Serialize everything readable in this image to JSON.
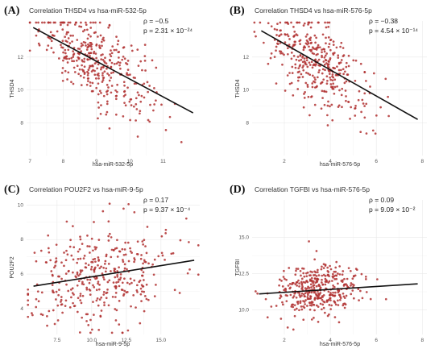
{
  "chart_data": [
    {
      "type": "scatter",
      "letter": "(A)",
      "title": "Correlation THSD4 vs hsa-miR-532-5p",
      "xlabel": "hsa-miR-532-5p",
      "ylabel": "THSD4",
      "rho": "ρ = −0.5",
      "p": "p = 2.31 × 10⁻²⁴",
      "xlim": [
        6.9,
        12.1
      ],
      "ylim": [
        6.0,
        14.2
      ],
      "xticks": [
        7,
        8,
        9,
        10,
        11
      ],
      "yticks": [
        8,
        10,
        12
      ],
      "point_color": "#b03030",
      "point_count": 380,
      "x_center": 9.0,
      "x_sd": 0.85,
      "fit": {
        "x": [
          7.1,
          11.9
        ],
        "y": [
          13.8,
          8.6
        ]
      },
      "y_sd": 1.2
    },
    {
      "type": "scatter",
      "letter": "(B)",
      "title": "Correlation THSD4 vs hsa-miR-576-5p",
      "xlabel": "hsa-miR-576-5p",
      "ylabel": "THSD4",
      "rho": "ρ = −0.38",
      "p": "p = 4.54 × 10⁻¹⁴",
      "xlim": [
        0.6,
        8.2
      ],
      "ylim": [
        6.0,
        14.2
      ],
      "xticks": [
        2,
        4,
        6,
        8
      ],
      "yticks": [
        8,
        10,
        12
      ],
      "point_color": "#b03030",
      "point_count": 380,
      "x_center": 3.5,
      "x_sd": 1.1,
      "fit": {
        "x": [
          1.0,
          7.8
        ],
        "y": [
          13.6,
          8.2
        ]
      },
      "y_sd": 1.3
    },
    {
      "type": "scatter",
      "letter": "(C)",
      "title": "Correlation POU2F2 vs hsa-miR-9-5p",
      "xlabel": "hsa-miR-9-5p",
      "ylabel": "POU2F2",
      "rho": "ρ = 0.17",
      "p": "p = 9.37 × 10⁻⁴",
      "xlim": [
        5.3,
        17.8
      ],
      "ylim": [
        2.5,
        10.3
      ],
      "xticks": [
        7.5,
        10.0,
        12.5,
        15.0
      ],
      "yticks": [
        4,
        6,
        8,
        10
      ],
      "point_color": "#b03030",
      "point_count": 380,
      "x_center": 10.5,
      "x_sd": 2.5,
      "fit": {
        "x": [
          5.8,
          17.4
        ],
        "y": [
          5.3,
          6.8
        ]
      },
      "y_sd": 1.4
    },
    {
      "type": "scatter",
      "letter": "(D)",
      "title": "Correlation TGFBI vs hsa-miR-576-5p",
      "xlabel": "hsa-miR-576-5p",
      "ylabel": "TGFBI",
      "rho": "ρ = 0.09",
      "p": "p = 9.09 × 10⁻²",
      "xlim": [
        0.6,
        8.2
      ],
      "ylim": [
        8.3,
        17.6
      ],
      "xticks": [
        2,
        4,
        6,
        8
      ],
      "yticks": [
        10.0,
        12.5,
        15.0
      ],
      "point_color": "#b03030",
      "point_count": 380,
      "x_center": 3.4,
      "x_sd": 0.9,
      "fit": {
        "x": [
          0.9,
          7.8
        ],
        "y": [
          11.1,
          11.8
        ]
      },
      "y_sd": 0.9
    }
  ]
}
